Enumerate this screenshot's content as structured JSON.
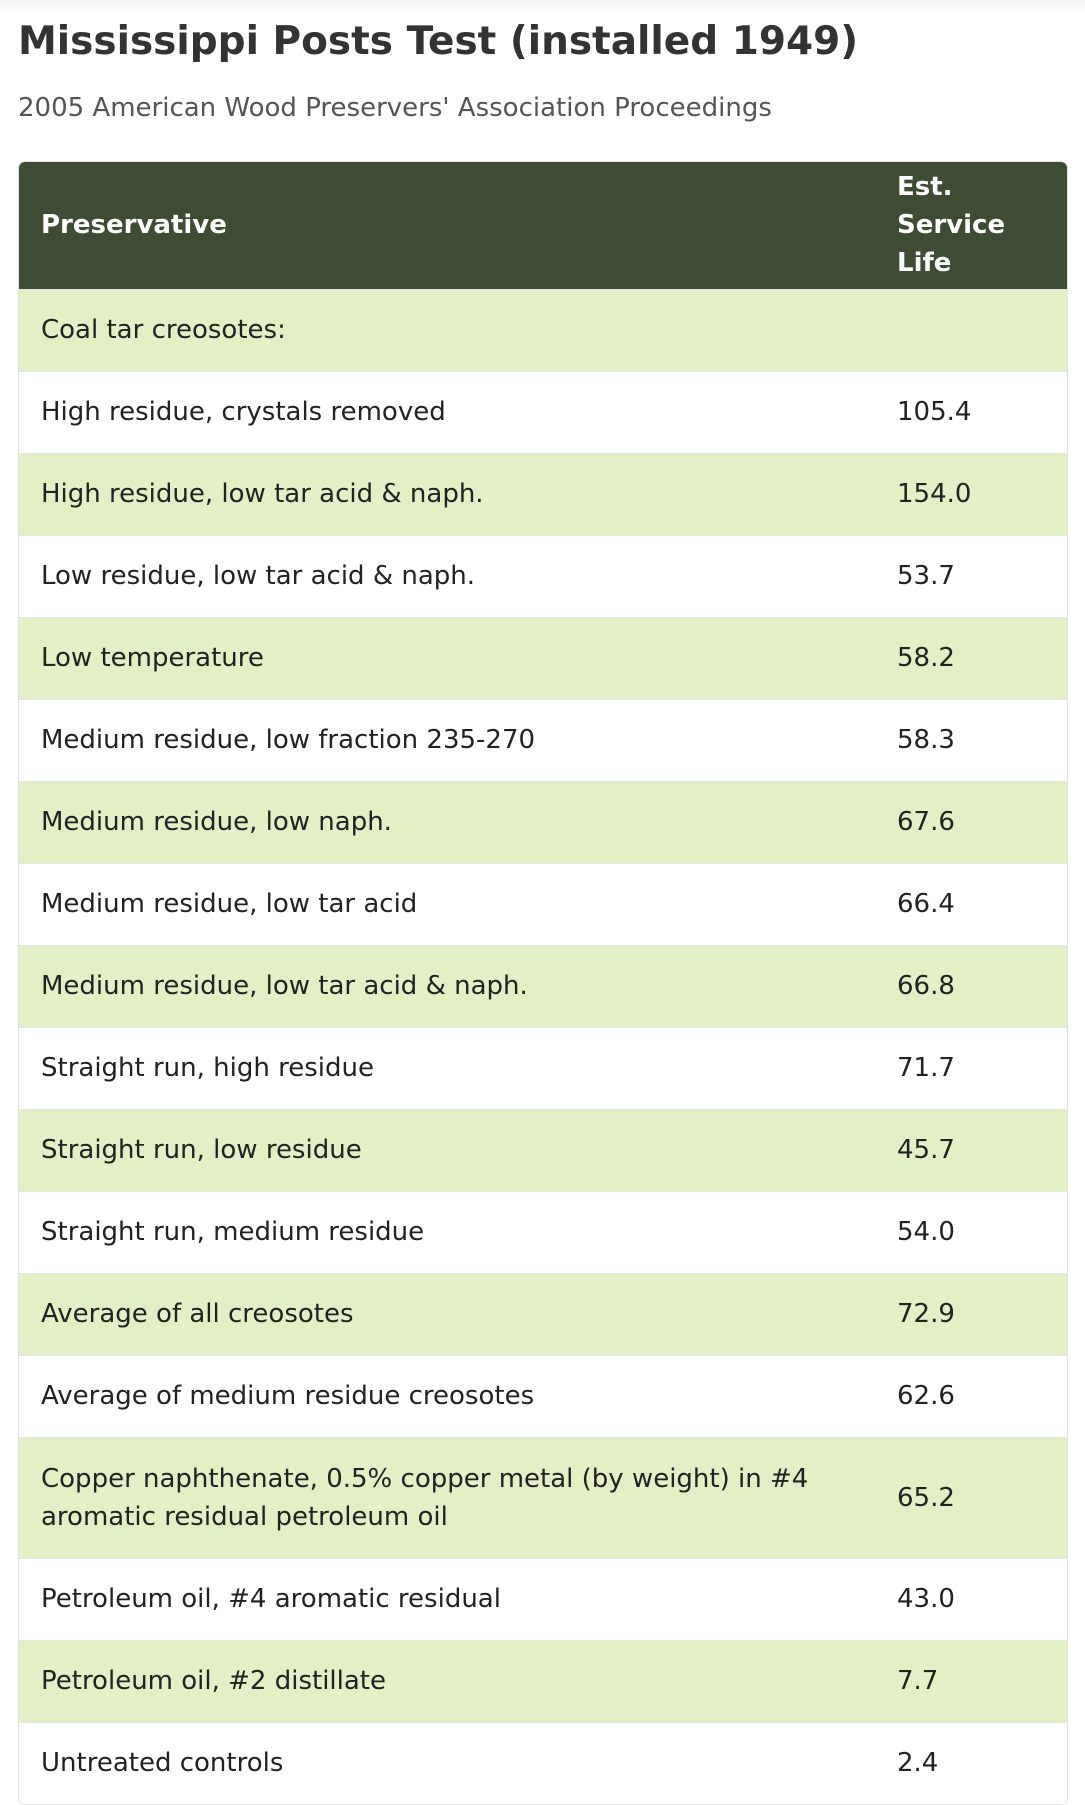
{
  "page": {
    "title": "Mississippi Posts Test (installed 1949)",
    "subtitle": "2005 American Wood Preservers' Association Proceedings"
  },
  "table": {
    "headers": {
      "preservative": "Preservative",
      "service_life": "Est. Service Life"
    },
    "rows": [
      {
        "preservative": "Coal tar creosotes:",
        "service_life": ""
      },
      {
        "preservative": "High residue, crystals removed",
        "service_life": "105.4"
      },
      {
        "preservative": "High residue, low tar acid & naph.",
        "service_life": "154.0"
      },
      {
        "preservative": "Low residue, low tar acid & naph.",
        "service_life": "53.7"
      },
      {
        "preservative": "Low temperature",
        "service_life": "58.2"
      },
      {
        "preservative": "Medium residue, low fraction 235-270",
        "service_life": "58.3"
      },
      {
        "preservative": "Medium residue, low naph.",
        "service_life": "67.6"
      },
      {
        "preservative": "Medium residue, low tar acid",
        "service_life": "66.4"
      },
      {
        "preservative": "Medium residue, low tar acid & naph.",
        "service_life": "66.8"
      },
      {
        "preservative": "Straight run, high residue",
        "service_life": "71.7"
      },
      {
        "preservative": "Straight run, low residue",
        "service_life": "45.7"
      },
      {
        "preservative": "Straight run, medium residue",
        "service_life": "54.0"
      },
      {
        "preservative": "Average of all creosotes",
        "service_life": "72.9"
      },
      {
        "preservative": "Average of medium residue creosotes",
        "service_life": "62.6"
      },
      {
        "preservative": "Copper naphthenate, 0.5% copper metal (by weight) in #4 aromatic residual petroleum oil",
        "service_life": "65.2"
      },
      {
        "preservative": "Petroleum oil, #4 aromatic residual",
        "service_life": "43.0"
      },
      {
        "preservative": "Petroleum oil, #2 distillate",
        "service_life": "7.7"
      },
      {
        "preservative": "Untreated controls",
        "service_life": "2.4"
      }
    ]
  },
  "colors": {
    "header_background": "#3d4c32",
    "row_highlight": "#e3f0c6",
    "row_plain": "#ffffff"
  }
}
